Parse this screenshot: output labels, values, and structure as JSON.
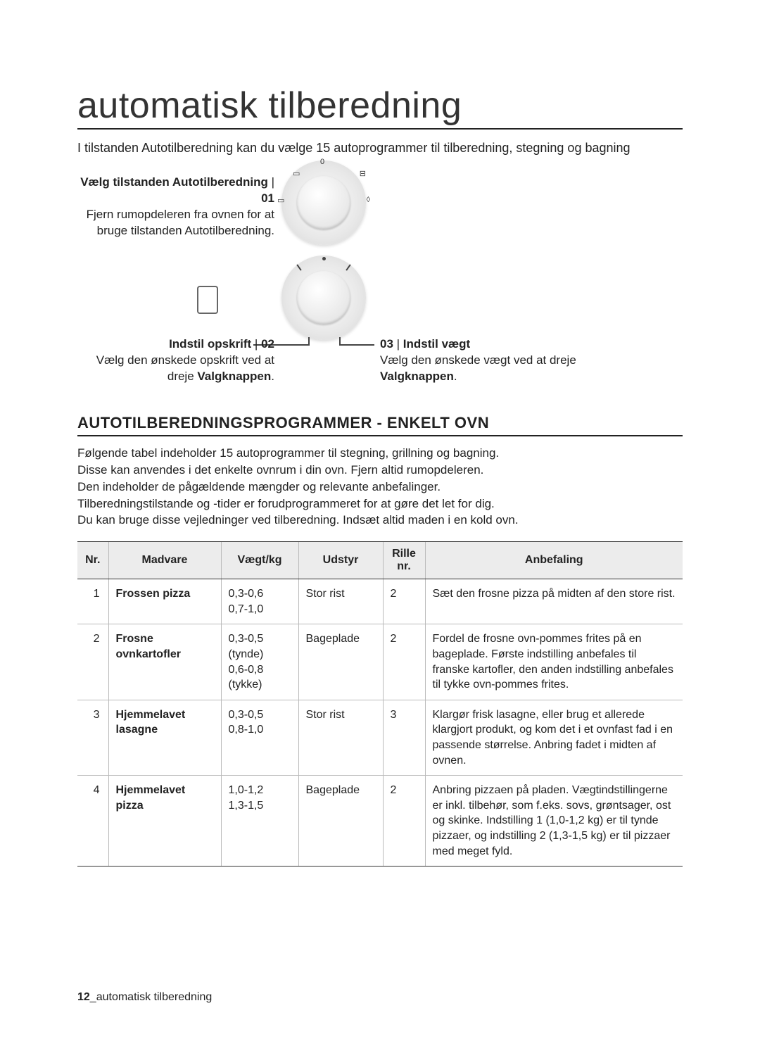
{
  "title": "automatisk tilberedning",
  "intro": "I tilstanden Autotilberedning kan du vælge 15 autoprogrammer til tilberedning, stegning og bagning",
  "steps": {
    "s1": {
      "head": "Vælg tilstanden Autotilberedning",
      "num": "01",
      "body": "Fjern rumopdeleren fra ovnen for at bruge tilstanden Autotilberedning."
    },
    "s2": {
      "head": "Indstil opskrift",
      "num": "02",
      "body1": "Vælg den ønskede opskrift ved at dreje ",
      "body_bold": "Valgknappen",
      "body_end": "."
    },
    "s3": {
      "head": "Indstil vægt",
      "num": "03",
      "body1": "Vælg den ønskede vægt ved at dreje ",
      "body_bold": "Valgknappen",
      "body_end": "."
    }
  },
  "dial1_labels": {
    "zero": "0",
    "tl": "▭",
    "l": "▭",
    "tr": "⊟",
    "r": "◊"
  },
  "section": {
    "title": "AUTOTILBEREDNINGSPROGRAMMER - ENKELT OVN",
    "text": "Følgende tabel indeholder 15 autoprogrammer til stegning, grillning og bagning.\nDisse kan anvendes i det enkelte ovnrum i din ovn. Fjern altid rumopdeleren.\nDen indeholder de pågældende mængder og relevante anbefalinger.\nTilberedningstilstande og -tider er forudprogrammeret for at gøre det let for dig.\nDu kan bruge disse vejledninger ved tilberedning. Indsæt altid maden i en kold ovn."
  },
  "table": {
    "columns": [
      "Nr.",
      "Madvare",
      "Vægt/kg",
      "Udstyr",
      "Rille\nnr.",
      "Anbefaling"
    ],
    "rows": [
      {
        "nr": "1",
        "food": "Frossen pizza",
        "weight": "0,3-0,6\n0,7-1,0",
        "equip": "Stor rist",
        "slot": "2",
        "rec": "Sæt den frosne pizza på midten af den store rist."
      },
      {
        "nr": "2",
        "food": "Frosne ovnkartofler",
        "weight": "0,3-0,5\n(tynde)\n0,6-0,8\n(tykke)",
        "equip": "Bageplade",
        "slot": "2",
        "rec": "Fordel de frosne ovn-pommes frites på en bageplade. Første indstilling anbefales til franske kartofler, den anden indstilling anbefales til tykke ovn-pommes frites."
      },
      {
        "nr": "3",
        "food": "Hjemmelavet lasagne",
        "weight": "0,3-0,5\n0,8-1,0",
        "equip": "Stor rist",
        "slot": "3",
        "rec": "Klargør frisk lasagne, eller brug et allerede klargjort produkt, og kom det i et ovnfast fad i en passende størrelse. Anbring fadet i midten af ovnen."
      },
      {
        "nr": "4",
        "food": "Hjemmelavet pizza",
        "weight": "1,0-1,2\n1,3-1,5",
        "equip": "Bageplade",
        "slot": "2",
        "rec": "Anbring pizzaen på pladen. Vægtindstillingerne er inkl. tilbehør, som f.eks. sovs, grøntsager, ost og skinke. Indstilling 1 (1,0-1,2 kg) er til tynde pizzaer, og indstilling 2 (1,3-1,5 kg) er til pizzaer med meget fyld."
      }
    ]
  },
  "footer": {
    "page": "12",
    "label": "_automatisk tilberedning"
  }
}
